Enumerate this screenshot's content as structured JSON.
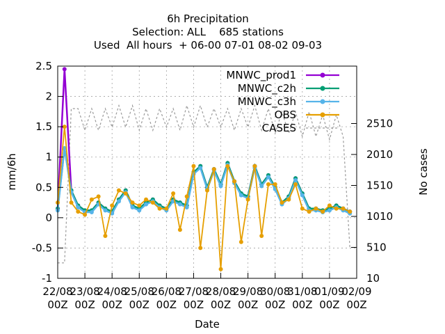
{
  "chart_data": {
    "type": "line",
    "title_lines": [
      "6h Precipitation",
      "Selection: ALL    685 stations",
      "Used  All hours  + 06-00 07-01 08-02 09-03"
    ],
    "xlabel": "Date",
    "ylabel": "mm/6h",
    "y2label": "No cases",
    "x_ticks": [
      [
        "22/08",
        "00Z"
      ],
      [
        "23/08",
        "00Z"
      ],
      [
        "24/08",
        "00Z"
      ],
      [
        "25/08",
        "00Z"
      ],
      [
        "26/08",
        "00Z"
      ],
      [
        "27/08",
        "00Z"
      ],
      [
        "28/08",
        "00Z"
      ],
      [
        "29/08",
        "00Z"
      ],
      [
        "30/08",
        "00Z"
      ],
      [
        "31/08",
        "00Z"
      ],
      [
        "01/09",
        "00Z"
      ],
      [
        "02/09",
        "00Z"
      ]
    ],
    "x_range_days": [
      0,
      11
    ],
    "y_ticks": [
      "-1",
      "-0.5",
      "0",
      "0.5",
      "1",
      "1.5",
      "2",
      "2.5"
    ],
    "ylim": [
      -1,
      2.5
    ],
    "y2_ticks": [
      "10",
      "510",
      "1010",
      "1510",
      "2010",
      "2510"
    ],
    "y2lim": [
      10,
      3437
    ],
    "grid": true,
    "legend_position": "top-right",
    "legend": [
      {
        "key": "mnwc_prod1",
        "label": "MNWC_prod1",
        "color": "#9400d3"
      },
      {
        "key": "mnwc_c2h",
        "label": "MNWC_c2h",
        "color": "#009e73"
      },
      {
        "key": "mnwc_c3h",
        "label": "MNWC_c3h",
        "color": "#56b4e9"
      },
      {
        "key": "obs",
        "label": "OBS",
        "color": "#e69f00"
      },
      {
        "key": "cases",
        "label": "CASES",
        "color": "#999999"
      }
    ],
    "series_shape": {
      "days": [
        0.0,
        0.25,
        0.5,
        0.75,
        1.0,
        1.25,
        1.5,
        1.75,
        2.0,
        2.25,
        2.5,
        2.75,
        3.0,
        3.25,
        3.5,
        3.75,
        4.0,
        4.25,
        4.5,
        4.75,
        5.0,
        5.25,
        5.5,
        5.75,
        6.0,
        6.25,
        6.5,
        6.75,
        7.0,
        7.25,
        7.5,
        7.75,
        8.0,
        8.25,
        8.5,
        8.75,
        9.0,
        9.25,
        9.5,
        9.75,
        10.0,
        10.25,
        10.5,
        10.75
      ],
      "model": [
        0.15,
        2.45,
        0.45,
        0.2,
        0.12,
        0.12,
        0.25,
        0.15,
        0.1,
        0.3,
        0.45,
        0.2,
        0.15,
        0.25,
        0.3,
        0.2,
        0.15,
        0.3,
        0.25,
        0.2,
        0.75,
        0.85,
        0.5,
        0.8,
        0.55,
        0.9,
        0.6,
        0.4,
        0.35,
        0.85,
        0.55,
        0.7,
        0.5,
        0.25,
        0.35,
        0.65,
        0.4,
        0.15,
        0.15,
        0.12,
        0.15,
        0.2,
        0.15,
        0.1
      ],
      "obs": [
        0.25,
        1.5,
        0.25,
        0.1,
        0.05,
        0.3,
        0.35,
        -0.3,
        0.2,
        0.45,
        0.4,
        0.25,
        0.2,
        0.3,
        0.25,
        0.15,
        0.15,
        0.4,
        -0.2,
        0.35,
        0.85,
        -0.5,
        0.45,
        0.8,
        -0.85,
        0.85,
        0.6,
        -0.4,
        0.3,
        0.85,
        -0.3,
        0.55,
        0.55,
        0.25,
        0.3,
        0.55,
        0.15,
        0.1,
        0.15,
        0.1,
        0.2,
        0.15,
        0.15,
        0.1
      ],
      "cases": [
        260,
        260,
        2750,
        2750,
        2400,
        2750,
        2400,
        2750,
        2450,
        2800,
        2450,
        2800,
        2400,
        2750,
        2400,
        2750,
        2450,
        2750,
        2400,
        2800,
        2450,
        2800,
        2450,
        2750,
        2450,
        2750,
        2400,
        2750,
        2450,
        2800,
        2400,
        2750,
        2350,
        2700,
        2350,
        2700,
        2300,
        2700,
        2300,
        2650,
        2250,
        2650,
        2300,
        500
      ]
    }
  }
}
